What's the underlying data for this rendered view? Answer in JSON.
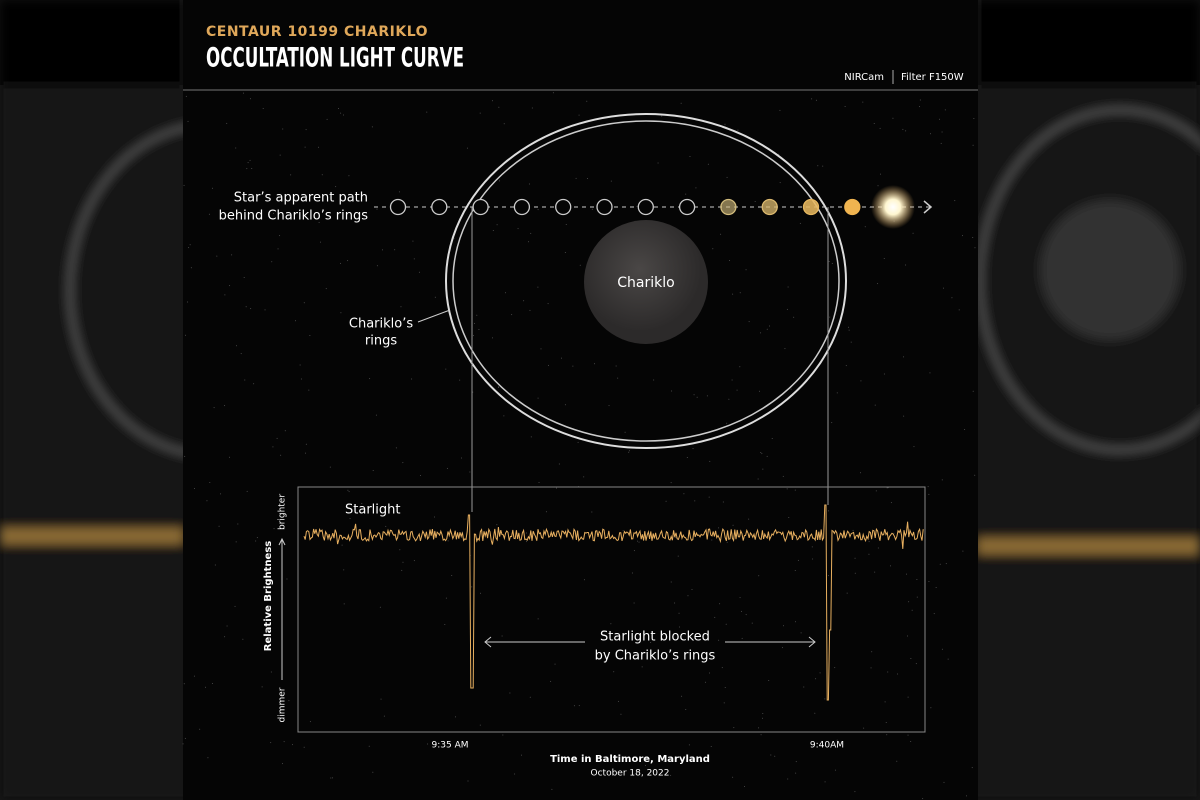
{
  "header": {
    "subtitle": "CENTAUR 10199 CHARIKLO",
    "title": "OCCULTATION LIGHT CURVE",
    "instrument": "NIRCam",
    "filter": "Filter F150W"
  },
  "diagram": {
    "path_label": [
      "Star’s apparent path",
      "behind Chariklo’s rings"
    ],
    "body_label": "Chariklo",
    "rings_label": [
      "Chariklo’s",
      "rings"
    ]
  },
  "light_curve": {
    "series_label": "Starlight",
    "y_axis_label": "Relative Brightness",
    "y_top": "brighter",
    "y_bottom": "dimmer",
    "annotation": [
      "Starlight blocked",
      "by Chariklo’s rings"
    ],
    "x_ticks": [
      "9:35 AM",
      "9:40AM"
    ],
    "x_axis_label": "Time in Baltimore, Maryland",
    "date": "October 18, 2022"
  }
}
